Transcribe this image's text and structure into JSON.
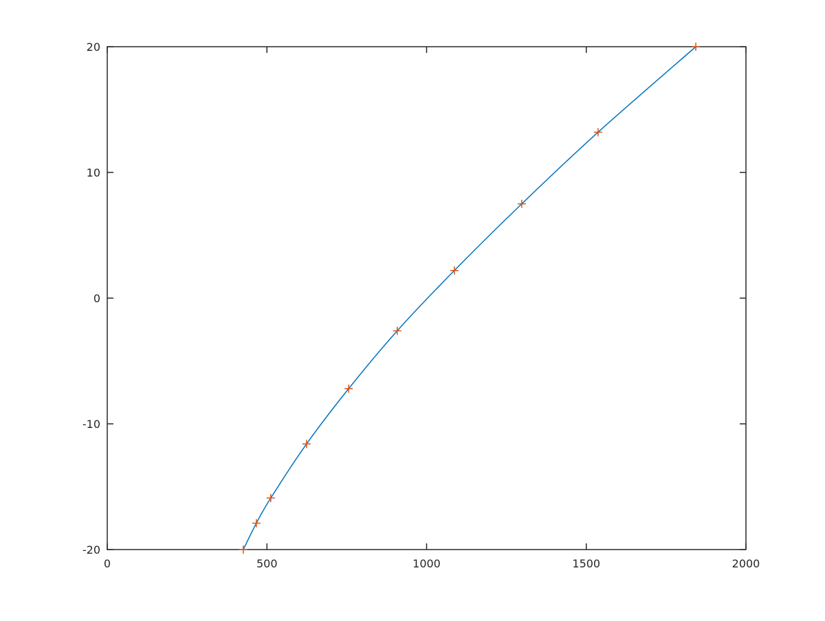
{
  "chart_data": {
    "type": "line",
    "title": "",
    "xlabel": "",
    "ylabel": "",
    "xlim": [
      0,
      2000
    ],
    "ylim": [
      -20,
      20
    ],
    "xticks": [
      0,
      500,
      1000,
      1500,
      2000
    ],
    "yticks": [
      -20,
      -10,
      0,
      10,
      20
    ],
    "xtick_labels": [
      "0",
      "500",
      "1000",
      "1500",
      "2000"
    ],
    "ytick_labels": [
      "-20",
      "-10",
      "0",
      "10",
      "20"
    ],
    "grid": false,
    "box": true,
    "series": [
      {
        "style": "line",
        "color": "#0072bd",
        "x": [
          426,
          467,
          512,
          624,
          756,
          908,
          1087,
          1298,
          1537,
          1843
        ],
        "y": [
          -20,
          -17.9,
          -15.9,
          -11.6,
          -7.2,
          -2.6,
          2.2,
          7.5,
          13.2,
          20
        ]
      },
      {
        "style": "markers",
        "marker": "+",
        "color": "#d95319",
        "x": [
          426,
          467,
          512,
          624,
          756,
          908,
          1087,
          1298,
          1537,
          1843
        ],
        "y": [
          -20,
          -17.9,
          -15.9,
          -11.6,
          -7.2,
          -2.6,
          2.2,
          7.5,
          13.2,
          20
        ]
      }
    ]
  }
}
